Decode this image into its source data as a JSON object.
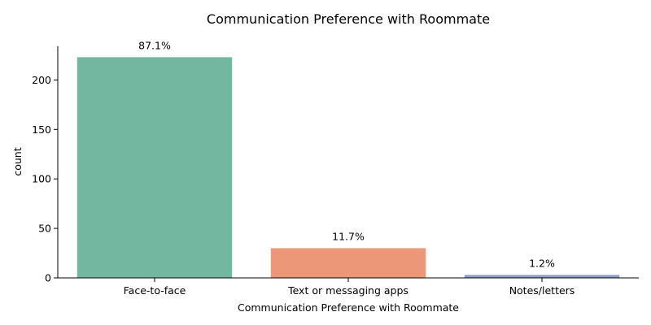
{
  "chart_data": {
    "type": "bar",
    "title": "Communication Preference with Roommate",
    "xlabel": "Communication Preference with Roommate",
    "ylabel": "count",
    "categories": [
      "Face-to-face",
      "Text or messaging apps",
      "Notes/letters"
    ],
    "values": [
      223,
      30,
      3
    ],
    "data_labels": [
      "87.1%",
      "11.7%",
      "1.2%"
    ],
    "colors": [
      "#73b7a0",
      "#ec9878",
      "#8d9dc4"
    ],
    "yticks": [
      0,
      50,
      100,
      150,
      200
    ],
    "ylim": [
      0,
      234
    ],
    "grid": false,
    "legend": "none"
  }
}
